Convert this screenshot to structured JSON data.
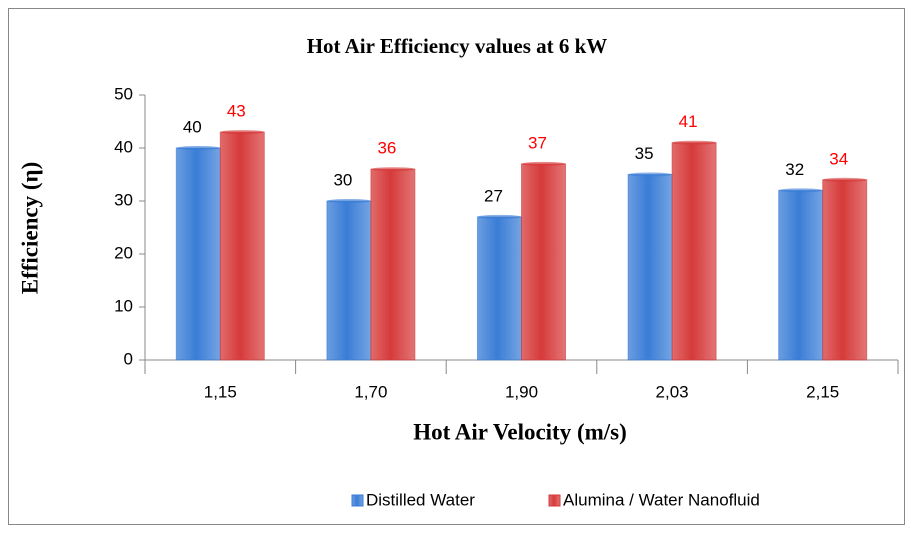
{
  "chart_data": {
    "type": "bar",
    "title": "Hot Air Efficiency values at 6 kW",
    "x_label": "Hot Air Velocity (m/s)",
    "y_label": "Efficiency (η)",
    "categories": [
      "1,15",
      "1,70",
      "1,90",
      "2,03",
      "2,15"
    ],
    "series": [
      {
        "name": "Distilled Water",
        "color": "#3a7dd6",
        "label_color": "#000000",
        "values": [
          40,
          30,
          27,
          35,
          32
        ]
      },
      {
        "name": "Alumina / Water Nanofluid",
        "color": "#d63a3a",
        "label_color": "#ff0000",
        "values": [
          43,
          36,
          37,
          41,
          34
        ]
      }
    ],
    "ylim": [
      0,
      50
    ],
    "yticks": [
      0,
      10,
      20,
      30,
      40,
      50
    ],
    "grid": false,
    "legend": "bottom"
  }
}
